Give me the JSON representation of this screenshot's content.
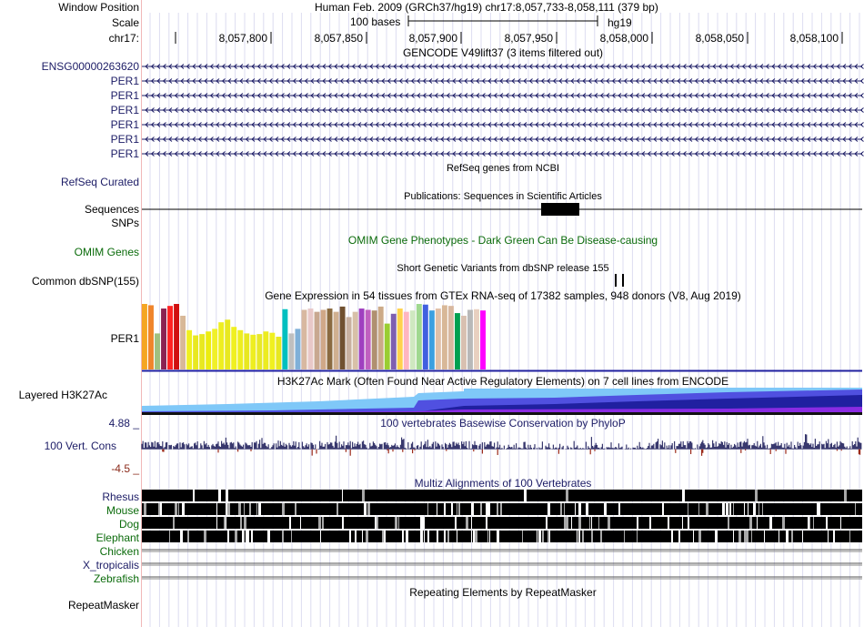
{
  "header": {
    "window_position_label": "Window Position",
    "assembly_text": "Human Feb. 2009 (GRCh37/hg19)",
    "position_text": "chr17:8,057,733-8,058,111 (379 bp)",
    "scale_label": "Scale",
    "scale_bases": "100 bases",
    "scale_db": "hg19",
    "ruler_label": "chr17:",
    "ruler_ticks": [
      "8,057,800",
      "8,057,850",
      "8,057,900",
      "8,057,950",
      "8,058,000",
      "8,058,050",
      "8,058,100"
    ]
  },
  "gencode": {
    "title": "GENCODE V49lift37 (3 items filtered out)",
    "items": [
      "ENSG00000263620",
      "PER1",
      "PER1",
      "PER1",
      "PER1",
      "PER1",
      "PER1"
    ]
  },
  "refseq": {
    "label": "RefSeq Curated",
    "title": "RefSeq genes from NCBI"
  },
  "publications": {
    "title": "Publications: Sequences in Scientific Articles",
    "label": "Sequences"
  },
  "snps": {
    "label": "SNPs"
  },
  "omim": {
    "label": "OMIM Genes",
    "title": "OMIM Gene Phenotypes - Dark Green Can Be Disease-causing"
  },
  "dbsnp": {
    "title": "Short Genetic Variants from dbSNP release 155",
    "label": "Common dbSNP(155)"
  },
  "gtex": {
    "title": "Gene Expression in 54 tissues from GTEx RNA-seq of 17382 samples, 948 donors (V8, Aug 2019)",
    "label": "PER1",
    "bar_levels": [
      1.0,
      0.98,
      0.55,
      0.93,
      0.97,
      1.0,
      0.82,
      0.6,
      0.52,
      0.54,
      0.58,
      0.62,
      0.72,
      0.76,
      0.65,
      0.6,
      0.55,
      0.53,
      0.54,
      0.58,
      0.56,
      0.5,
      0.92,
      0.55,
      0.62,
      0.91,
      0.93,
      0.88,
      0.91,
      0.93,
      0.88,
      0.96,
      0.8,
      0.88,
      0.93,
      0.91,
      0.9,
      0.96,
      0.7,
      0.85,
      0.93,
      0.88,
      0.9,
      1.0,
      0.99,
      0.9,
      0.93,
      0.98,
      0.97,
      0.86,
      0.82,
      0.91,
      0.92,
      0.9
    ],
    "bar_colors": [
      "#f5a623",
      "#f0852b",
      "#a0c080",
      "#8b2252",
      "#ff2222",
      "#d01010",
      "#d8b898",
      "#f0f020",
      "#e8e820",
      "#e8e820",
      "#ecec10",
      "#f0f028",
      "#eeee20",
      "#e8e820",
      "#f0f020",
      "#eeee20",
      "#e8e820",
      "#eeee20",
      "#e8e828",
      "#ecec20",
      "#f0f020",
      "#e8e820",
      "#00c0c0",
      "#bfbfbf",
      "#7fb0d8",
      "#d8b8a0",
      "#e8c8c8",
      "#c8a890",
      "#d0a888",
      "#8a6a40",
      "#d0b090",
      "#705030",
      "#c8b0a0",
      "#d8c0a8",
      "#a040c0",
      "#c060c0",
      "#b09070",
      "#ccaa88",
      "#9acd32",
      "#7e5fb0",
      "#ffd24d",
      "#ffb6c1",
      "#cfe8c0",
      "#a0d890",
      "#4060e0",
      "#3ca0e0",
      "#e0c0a8",
      "#d8b898",
      "#d8b8a0",
      "#00a050",
      "#d8c0b0",
      "#b8b8b8",
      "#e8d0c0",
      "#ff00ff"
    ]
  },
  "h3k27ac": {
    "title": "H3K27Ac Mark (Often Found Near Active Regulatory Elements) on 7 cell lines from ENCODE",
    "label": "Layered H3K27Ac",
    "colors": [
      "#7fc8f8",
      "#5050e0",
      "#2020a0",
      "#8a2be2",
      "#111111"
    ]
  },
  "conservation": {
    "title": "100 vertebrates Basewise Conservation by PhyloP",
    "label": "100 Vert. Cons",
    "max_label": "4.88 _",
    "min_label": "-4.5 _",
    "max_value": 4.88,
    "min_value": -4.5,
    "pos_color": "#38386e",
    "neg_color": "#9b2a1a"
  },
  "multiz": {
    "title": "Multiz Alignments of 100 Vertebrates",
    "species": [
      {
        "name": "Rhesus",
        "kind": "primate"
      },
      {
        "name": "Mouse",
        "kind": "mammal"
      },
      {
        "name": "Dog",
        "kind": "mammal"
      },
      {
        "name": "Elephant",
        "kind": "mammal"
      },
      {
        "name": "Chicken",
        "kind": "other"
      },
      {
        "name": "X_tropicalis",
        "kind": "other"
      },
      {
        "name": "Zebrafish",
        "kind": "other"
      }
    ]
  },
  "repeatmasker": {
    "label": "RepeatMasker",
    "title": "Repeating Elements by RepeatMasker"
  }
}
